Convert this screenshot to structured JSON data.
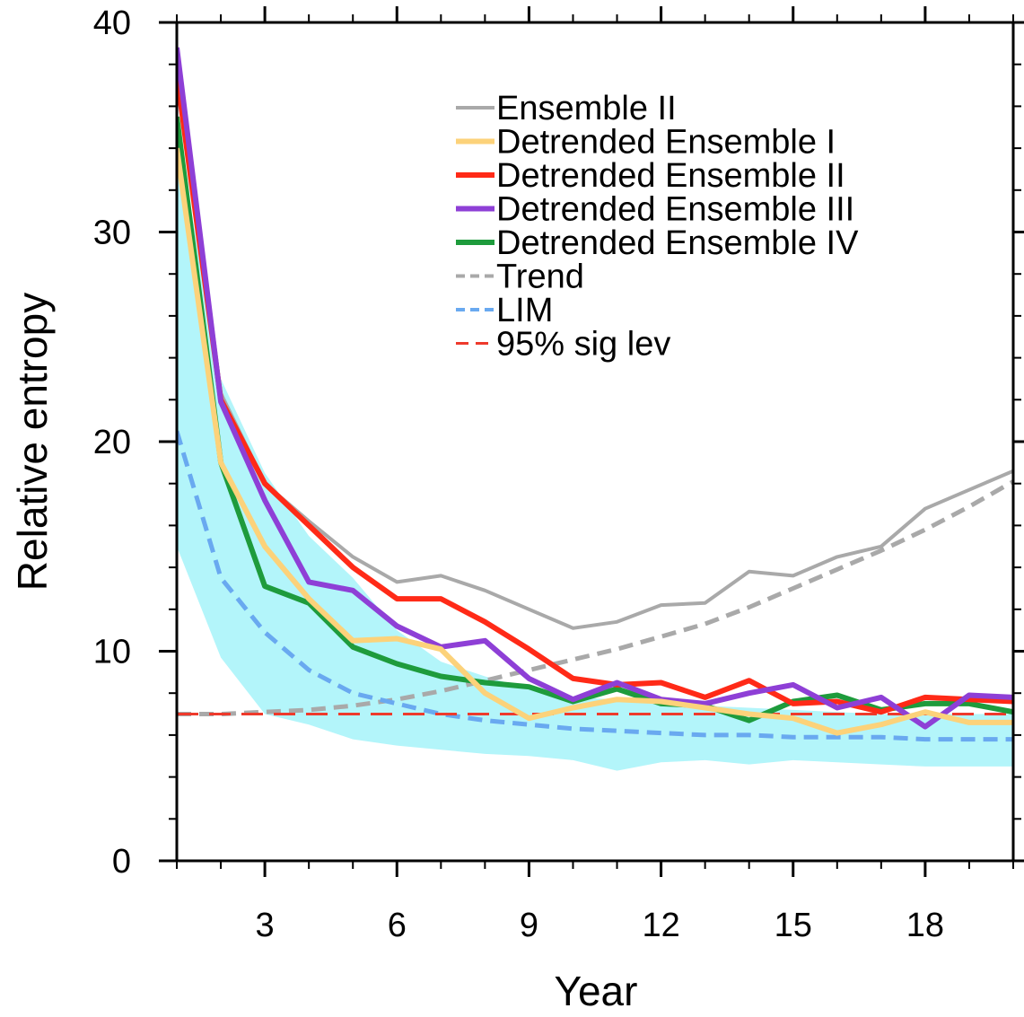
{
  "chart_data": {
    "type": "line",
    "xlabel": "Year",
    "ylabel": "Relative entropy",
    "xlim": [
      1,
      20
    ],
    "ylim": [
      0,
      40
    ],
    "x_ticks": [
      3,
      6,
      9,
      12,
      15,
      18
    ],
    "x_minor_ticks": [
      1,
      2,
      3,
      4,
      5,
      6,
      7,
      8,
      9,
      10,
      11,
      12,
      13,
      14,
      15,
      16,
      17,
      18,
      19,
      20
    ],
    "y_ticks": [
      0,
      10,
      20,
      30,
      40
    ],
    "y_minor_step": 2,
    "grid": false,
    "legend_position": "top-right",
    "shaded_band": {
      "color": "#b3f5fa",
      "x": [
        1,
        2,
        3,
        4,
        5,
        6,
        7,
        8,
        9,
        10,
        11,
        12,
        13,
        14,
        15,
        16,
        17,
        18,
        19,
        20
      ],
      "upper": [
        35.0,
        23.0,
        18.5,
        15.5,
        13.5,
        11.0,
        9.5,
        8.8,
        8.2,
        7.8,
        7.7,
        7.5,
        7.4,
        7.3,
        7.2,
        7.1,
        7.0,
        7.0,
        7.0,
        7.0
      ],
      "lower": [
        15.0,
        9.7,
        7.0,
        6.5,
        5.8,
        5.5,
        5.3,
        5.1,
        5.0,
        4.8,
        4.3,
        4.7,
        4.8,
        4.6,
        4.8,
        4.7,
        4.6,
        4.5,
        4.5,
        4.5
      ]
    },
    "x": [
      1,
      2,
      3,
      4,
      5,
      6,
      7,
      8,
      9,
      10,
      11,
      12,
      13,
      14,
      15,
      16,
      17,
      18,
      19,
      20
    ],
    "series": [
      {
        "name": "Ensemble II",
        "color": "#a9a9a9",
        "style": "solid",
        "width": 4,
        "values": [
          38.5,
          22.3,
          18.0,
          16.2,
          14.5,
          13.3,
          13.6,
          12.9,
          12.0,
          11.1,
          11.4,
          12.2,
          12.3,
          13.8,
          13.6,
          14.5,
          15.0,
          16.8,
          17.7,
          18.6
        ]
      },
      {
        "name": "Detrended Ensemble I",
        "color": "#fcd27a",
        "style": "solid",
        "width": 6,
        "values": [
          34.0,
          19.0,
          15.0,
          12.5,
          10.5,
          10.6,
          10.1,
          8.0,
          6.8,
          7.3,
          7.7,
          7.6,
          7.3,
          7.0,
          6.8,
          6.1,
          6.5,
          7.1,
          6.6,
          6.6
        ]
      },
      {
        "name": "Detrended Ensemble II",
        "color": "#ff2a17",
        "style": "solid",
        "width": 6,
        "values": [
          37.5,
          22.0,
          18.0,
          16.0,
          14.0,
          12.5,
          12.5,
          11.4,
          10.1,
          8.7,
          8.4,
          8.5,
          7.8,
          8.6,
          7.5,
          7.6,
          7.1,
          7.8,
          7.7,
          7.6
        ]
      },
      {
        "name": "Detrended Ensemble III",
        "color": "#8e3fd6",
        "style": "solid",
        "width": 6,
        "values": [
          38.8,
          21.9,
          17.2,
          13.3,
          12.9,
          11.2,
          10.2,
          10.5,
          8.7,
          7.7,
          8.5,
          7.7,
          7.5,
          8.0,
          8.4,
          7.3,
          7.8,
          6.4,
          7.9,
          7.8
        ]
      },
      {
        "name": "Detrended Ensemble IV",
        "color": "#1e9b3c",
        "style": "solid",
        "width": 6,
        "values": [
          35.5,
          19.0,
          13.1,
          12.3,
          10.2,
          9.4,
          8.8,
          8.5,
          8.3,
          7.6,
          8.2,
          7.5,
          7.4,
          6.7,
          7.6,
          7.9,
          7.2,
          7.5,
          7.5,
          7.1
        ]
      },
      {
        "name": "Trend",
        "color": "#a9a9a9",
        "style": "dashed",
        "width": 5,
        "values": [
          7.0,
          7.0,
          7.1,
          7.2,
          7.4,
          7.7,
          8.1,
          8.6,
          9.1,
          9.6,
          10.1,
          10.7,
          11.3,
          12.1,
          13.0,
          13.9,
          14.8,
          15.8,
          16.9,
          18.1
        ]
      },
      {
        "name": "LIM",
        "color": "#69a9f0",
        "style": "dashed",
        "width": 5,
        "values": [
          20.5,
          13.5,
          10.9,
          9.1,
          8.0,
          7.5,
          7.0,
          6.7,
          6.5,
          6.3,
          6.2,
          6.1,
          6.0,
          6.0,
          5.9,
          5.9,
          5.9,
          5.8,
          5.8,
          5.8
        ]
      },
      {
        "name": "95% sig lev",
        "color": "#ee3a2c",
        "style": "longdash",
        "width": 3,
        "values": [
          7.0,
          7.0,
          7.0,
          7.0,
          7.0,
          7.0,
          7.0,
          7.0,
          7.0,
          7.0,
          7.0,
          7.0,
          7.0,
          7.0,
          7.0,
          7.0,
          7.0,
          7.0,
          7.0,
          7.0
        ]
      }
    ]
  }
}
